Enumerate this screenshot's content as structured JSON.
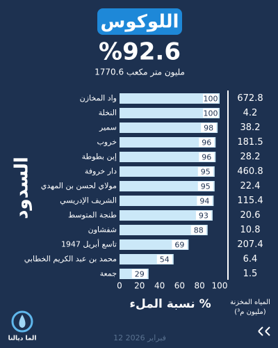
{
  "chart_data": {
    "type": "bar",
    "orientation": "horizontal",
    "title": "اللوكوس",
    "headline": "%92.6",
    "subtitle": "1770.6 مليون متر مكعب",
    "y_label": "السدود",
    "x_label": "نسبة الملء %",
    "categories": [
      "واد المخازن",
      "النخلة",
      "سمير",
      "خروب",
      "إبن بطوطة",
      "دار خروفة",
      "مولاي لحسن بن المهدي",
      "الشريف الإدريسي",
      "طنجة المتوسط",
      "شفشاون",
      "تاسع أبريل 1947",
      "محمد بن عبد الكريم الخطابي",
      "جمعة"
    ],
    "values": [
      100,
      100,
      98,
      96,
      96,
      95,
      95,
      94,
      93,
      88,
      69,
      54,
      29
    ],
    "color": "#cbe8f8",
    "xlim": [
      0,
      100
    ],
    "xticks": [
      0,
      20,
      40,
      60,
      80,
      100
    ],
    "storage": {
      "header": [
        "المياه المخزنة",
        "(مليون م³)"
      ],
      "values": [
        672.8,
        4.2,
        38.2,
        181.5,
        28.2,
        460.8,
        22.4,
        115.4,
        20.6,
        10.8,
        207.4,
        6.4,
        1.5
      ]
    }
  },
  "footer": {
    "brand": "الما ديالنا",
    "date": "12 فبراير 2026"
  }
}
